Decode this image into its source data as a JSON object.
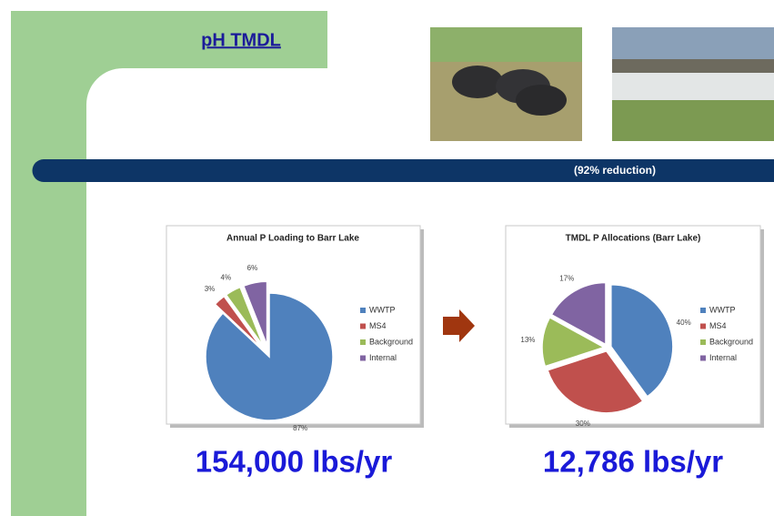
{
  "title": "pH TMDL",
  "banner": "(92% reduction)",
  "chart_data": [
    {
      "type": "pie",
      "title": "Annual P Loading to Barr Lake",
      "categories": [
        "WWTP",
        "MS4",
        "Background",
        "Internal"
      ],
      "values": [
        87,
        3,
        4,
        6
      ],
      "value_labels": [
        "87%",
        "3%",
        "4%",
        "6%"
      ],
      "colors": [
        "#4f81bd",
        "#c0504d",
        "#9bbb59",
        "#8064a2"
      ]
    },
    {
      "type": "pie",
      "title": "TMDL P Allocations  (Barr Lake)",
      "categories": [
        "WWTP",
        "MS4",
        "Background",
        "Internal"
      ],
      "values": [
        40,
        30,
        13,
        17
      ],
      "value_labels": [
        "40%",
        "30%",
        "13%",
        "17%"
      ],
      "colors": [
        "#4f81bd",
        "#c0504d",
        "#9bbb59",
        "#8064a2"
      ]
    }
  ],
  "totals": [
    "154,000 lbs/yr",
    "12,786 lbs/yr"
  ]
}
